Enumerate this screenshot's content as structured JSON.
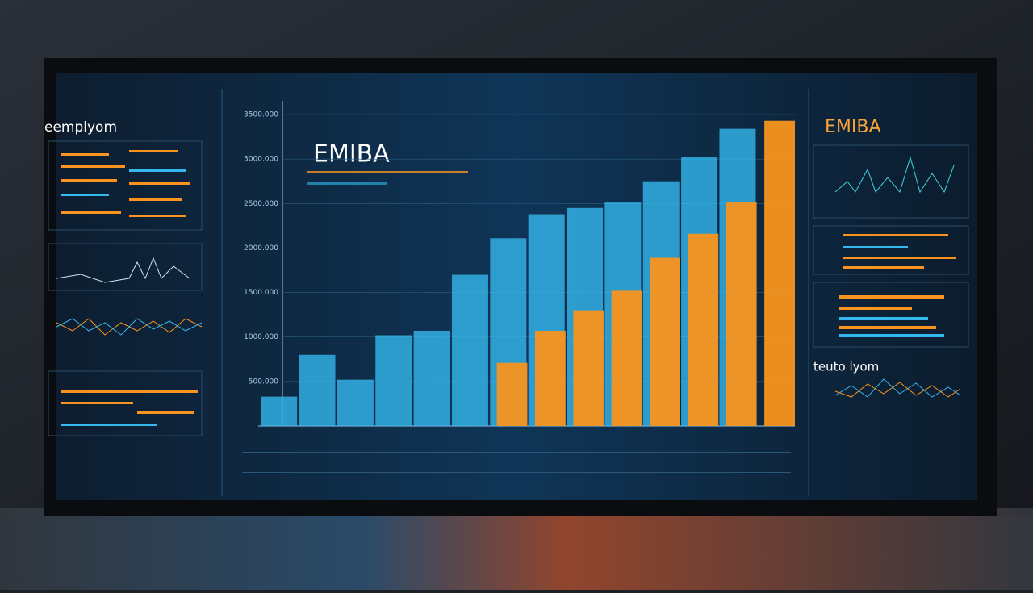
{
  "chart_data": {
    "type": "bar",
    "title": "EMIBA",
    "categories": [
      null,
      null,
      null,
      null,
      null,
      null,
      null,
      null,
      null,
      null,
      null,
      null,
      null,
      null
    ],
    "series": [
      {
        "color": "#35b8ee",
        "values": [
          330,
          800,
          520,
          1020,
          1070,
          1700,
          2110,
          2380,
          2450,
          2520,
          2750,
          3020,
          3340,
          null
        ]
      },
      {
        "color": "#f7931e",
        "values": [
          null,
          null,
          null,
          null,
          null,
          null,
          710,
          1070,
          1300,
          1520,
          1890,
          2160,
          2520,
          3430
        ]
      }
    ],
    "ylim": [
      0,
      3500
    ],
    "yticks": [
      {
        "value": 500,
        "label": "500.000"
      },
      {
        "value": 1000,
        "label": "1000.000"
      },
      {
        "value": 1500,
        "label": "1500.000"
      },
      {
        "value": 2000,
        "label": "2000.000"
      },
      {
        "value": 2500,
        "label": "2500.000"
      },
      {
        "value": 3000,
        "label": "3000.000"
      },
      {
        "value": 3500,
        "label": "3500.000"
      }
    ],
    "grid": true
  },
  "panels": {
    "left_title": "eemplyom",
    "right_title": "EMIBA",
    "right_lower_title": "teuto lyom"
  }
}
